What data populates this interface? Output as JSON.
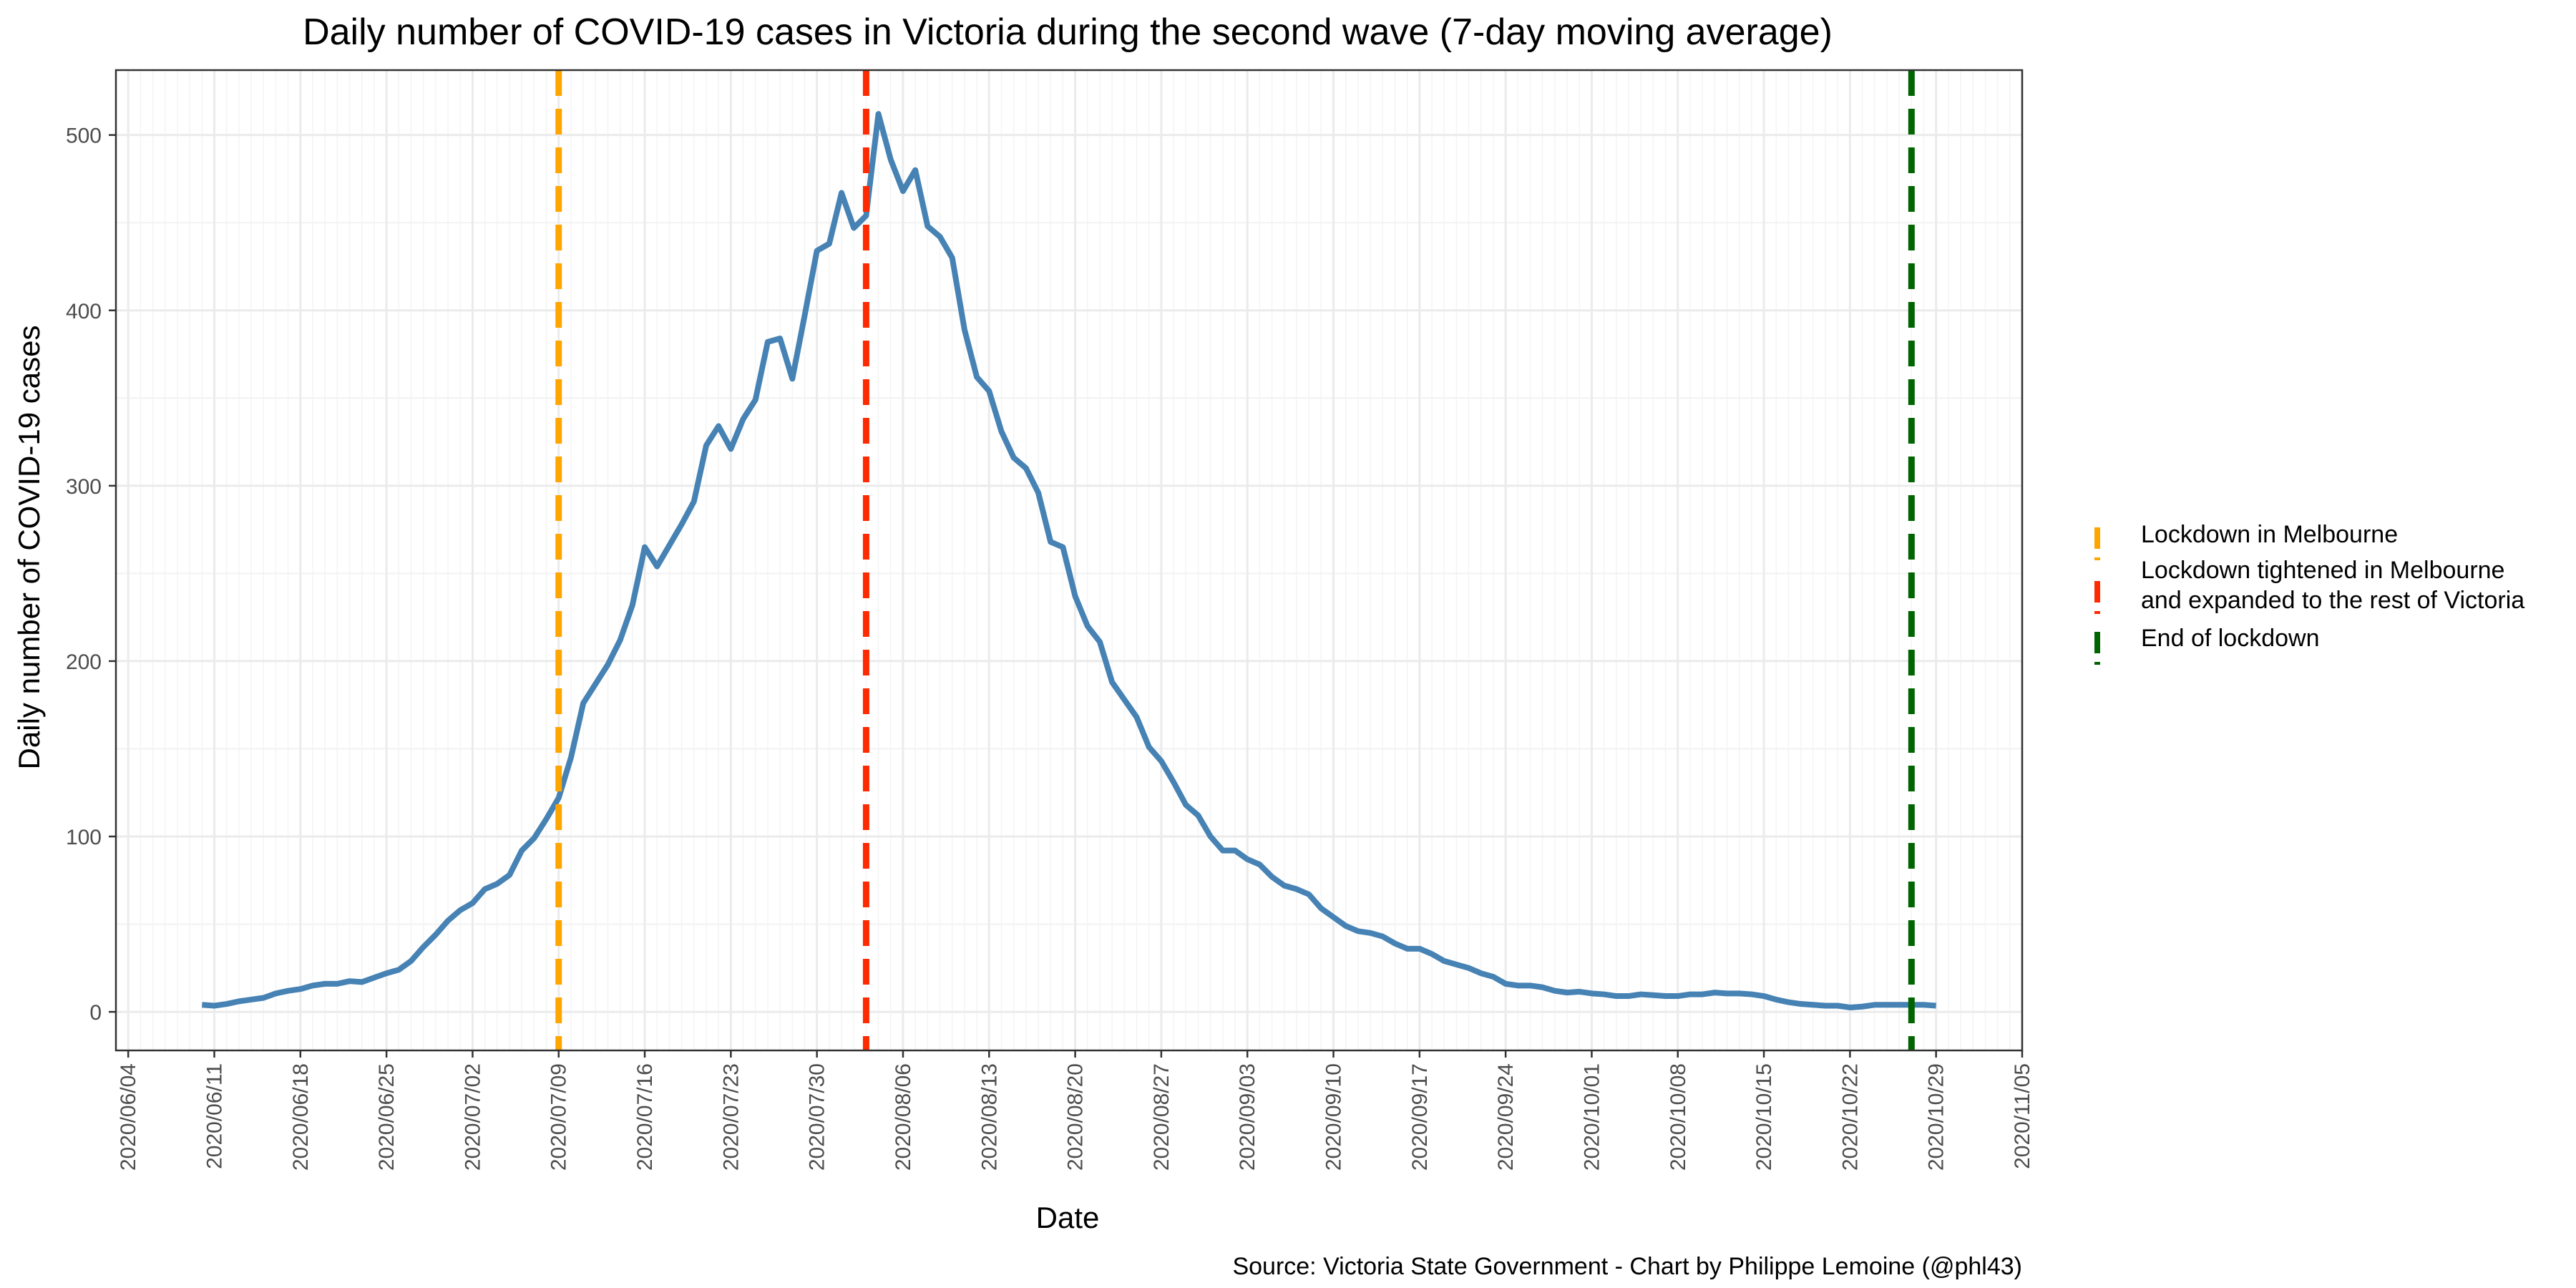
{
  "chart_data": {
    "type": "line",
    "title": "Daily number of COVID-19 cases in Victoria during the second wave (7-day moving average)",
    "xlabel": "Date",
    "ylabel": "Daily number of COVID-19 cases",
    "caption": "Source: Victoria State Government - Chart by Philippe Lemoine (@phl43)",
    "x_axis": {
      "type": "date",
      "range": [
        "2020-06-03",
        "2020-11-05"
      ],
      "major_ticks": [
        "2020/06/04",
        "2020/06/11",
        "2020/06/18",
        "2020/06/25",
        "2020/07/02",
        "2020/07/09",
        "2020/07/16",
        "2020/07/23",
        "2020/07/30",
        "2020/08/06",
        "2020/08/13",
        "2020/08/20",
        "2020/08/27",
        "2020/09/03",
        "2020/09/10",
        "2020/09/17",
        "2020/09/24",
        "2020/10/01",
        "2020/10/08",
        "2020/10/15",
        "2020/10/22",
        "2020/10/29",
        "2020/11/05"
      ]
    },
    "y_axis": {
      "range": [
        -22,
        537
      ],
      "ticks": [
        0,
        100,
        200,
        300,
        400,
        500
      ]
    },
    "grid": true,
    "legend_position": "right",
    "series": [
      {
        "color": "#4682b4",
        "points": [
          [
            "2020-06-10",
            4
          ],
          [
            "2020-06-11",
            3.5
          ],
          [
            "2020-06-12",
            4.5
          ],
          [
            "2020-06-13",
            6
          ],
          [
            "2020-06-14",
            7
          ],
          [
            "2020-06-15",
            8
          ],
          [
            "2020-06-16",
            10.5
          ],
          [
            "2020-06-17",
            12
          ],
          [
            "2020-06-18",
            13
          ],
          [
            "2020-06-19",
            15
          ],
          [
            "2020-06-20",
            16
          ],
          [
            "2020-06-21",
            16
          ],
          [
            "2020-06-22",
            17.5
          ],
          [
            "2020-06-23",
            17
          ],
          [
            "2020-06-24",
            19.5
          ],
          [
            "2020-06-25",
            22
          ],
          [
            "2020-06-26",
            24
          ],
          [
            "2020-06-27",
            29
          ],
          [
            "2020-06-28",
            37
          ],
          [
            "2020-06-29",
            44
          ],
          [
            "2020-06-30",
            52
          ],
          [
            "2020-07-01",
            58
          ],
          [
            "2020-07-02",
            62
          ],
          [
            "2020-07-03",
            70
          ],
          [
            "2020-07-04",
            73
          ],
          [
            "2020-07-05",
            78
          ],
          [
            "2020-07-06",
            92
          ],
          [
            "2020-07-07",
            99
          ],
          [
            "2020-07-08",
            110
          ],
          [
            "2020-07-09",
            122
          ],
          [
            "2020-07-10",
            145
          ],
          [
            "2020-07-11",
            176
          ],
          [
            "2020-07-12",
            187
          ],
          [
            "2020-07-13",
            198
          ],
          [
            "2020-07-14",
            212
          ],
          [
            "2020-07-15",
            232
          ],
          [
            "2020-07-16",
            265
          ],
          [
            "2020-07-17",
            254
          ],
          [
            "2020-07-18",
            266
          ],
          [
            "2020-07-19",
            278
          ],
          [
            "2020-07-20",
            291
          ],
          [
            "2020-07-21",
            323
          ],
          [
            "2020-07-22",
            334
          ],
          [
            "2020-07-23",
            321
          ],
          [
            "2020-07-24",
            338
          ],
          [
            "2020-07-25",
            349
          ],
          [
            "2020-07-26",
            382
          ],
          [
            "2020-07-27",
            384
          ],
          [
            "2020-07-28",
            361
          ],
          [
            "2020-07-29",
            397
          ],
          [
            "2020-07-30",
            434
          ],
          [
            "2020-07-31",
            438
          ],
          [
            "2020-08-01",
            467
          ],
          [
            "2020-08-02",
            447
          ],
          [
            "2020-08-03",
            454
          ],
          [
            "2020-08-04",
            512
          ],
          [
            "2020-08-05",
            486
          ],
          [
            "2020-08-06",
            468
          ],
          [
            "2020-08-07",
            480
          ],
          [
            "2020-08-08",
            448
          ],
          [
            "2020-08-09",
            442
          ],
          [
            "2020-08-10",
            430
          ],
          [
            "2020-08-11",
            389
          ],
          [
            "2020-08-12",
            362
          ],
          [
            "2020-08-13",
            354
          ],
          [
            "2020-08-14",
            331
          ],
          [
            "2020-08-15",
            316
          ],
          [
            "2020-08-16",
            310
          ],
          [
            "2020-08-17",
            296
          ],
          [
            "2020-08-18",
            268
          ],
          [
            "2020-08-19",
            265
          ],
          [
            "2020-08-20",
            237
          ],
          [
            "2020-08-21",
            220
          ],
          [
            "2020-08-22",
            211
          ],
          [
            "2020-08-23",
            188
          ],
          [
            "2020-08-24",
            178
          ],
          [
            "2020-08-25",
            168
          ],
          [
            "2020-08-26",
            151
          ],
          [
            "2020-08-27",
            143
          ],
          [
            "2020-08-28",
            131
          ],
          [
            "2020-08-29",
            118
          ],
          [
            "2020-08-30",
            112
          ],
          [
            "2020-08-31",
            100
          ],
          [
            "2020-09-01",
            92
          ],
          [
            "2020-09-02",
            92
          ],
          [
            "2020-09-03",
            87
          ],
          [
            "2020-09-04",
            84
          ],
          [
            "2020-09-05",
            77
          ],
          [
            "2020-09-06",
            72
          ],
          [
            "2020-09-07",
            70
          ],
          [
            "2020-09-08",
            67
          ],
          [
            "2020-09-09",
            59
          ],
          [
            "2020-09-10",
            54
          ],
          [
            "2020-09-11",
            49
          ],
          [
            "2020-09-12",
            46
          ],
          [
            "2020-09-13",
            45
          ],
          [
            "2020-09-14",
            43
          ],
          [
            "2020-09-15",
            39
          ],
          [
            "2020-09-16",
            36
          ],
          [
            "2020-09-17",
            36
          ],
          [
            "2020-09-18",
            33
          ],
          [
            "2020-09-19",
            29
          ],
          [
            "2020-09-20",
            27
          ],
          [
            "2020-09-21",
            25
          ],
          [
            "2020-09-22",
            22
          ],
          [
            "2020-09-23",
            20
          ],
          [
            "2020-09-24",
            16
          ],
          [
            "2020-09-25",
            15
          ],
          [
            "2020-09-26",
            15
          ],
          [
            "2020-09-27",
            14
          ],
          [
            "2020-09-28",
            12
          ],
          [
            "2020-09-29",
            11
          ],
          [
            "2020-09-30",
            11.5
          ],
          [
            "2020-10-01",
            10.5
          ],
          [
            "2020-10-02",
            10
          ],
          [
            "2020-10-03",
            9
          ],
          [
            "2020-10-04",
            9
          ],
          [
            "2020-10-05",
            10
          ],
          [
            "2020-10-06",
            9.5
          ],
          [
            "2020-10-07",
            9
          ],
          [
            "2020-10-08",
            9
          ],
          [
            "2020-10-09",
            10
          ],
          [
            "2020-10-10",
            10
          ],
          [
            "2020-10-11",
            11
          ],
          [
            "2020-10-12",
            10.5
          ],
          [
            "2020-10-13",
            10.5
          ],
          [
            "2020-10-14",
            10
          ],
          [
            "2020-10-15",
            9
          ],
          [
            "2020-10-16",
            7
          ],
          [
            "2020-10-17",
            5.5
          ],
          [
            "2020-10-18",
            4.5
          ],
          [
            "2020-10-19",
            4
          ],
          [
            "2020-10-20",
            3.5
          ],
          [
            "2020-10-21",
            3.5
          ],
          [
            "2020-10-22",
            2.5
          ],
          [
            "2020-10-23",
            3
          ],
          [
            "2020-10-24",
            4
          ],
          [
            "2020-10-25",
            4
          ],
          [
            "2020-10-26",
            4
          ],
          [
            "2020-10-27",
            4
          ],
          [
            "2020-10-28",
            4
          ],
          [
            "2020-10-29",
            3.5
          ]
        ]
      }
    ],
    "reference_lines": [
      {
        "date": "2020-07-09",
        "color": "#ffa500",
        "label_lines": [
          "Lockdown in Melbourne"
        ]
      },
      {
        "date": "2020-08-03",
        "color": "#ff2a00",
        "label_lines": [
          "Lockdown tightened in Melbourne",
          "and expanded to the rest of Victoria"
        ]
      },
      {
        "date": "2020-10-27",
        "color": "#006400",
        "label_lines": [
          "End of lockdown"
        ]
      }
    ]
  }
}
